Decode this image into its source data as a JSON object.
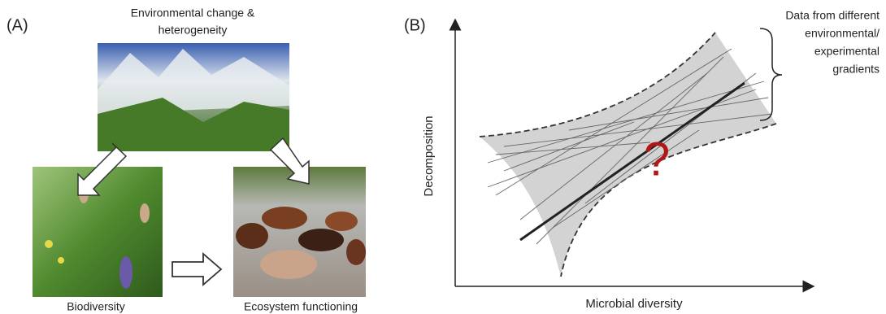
{
  "panel_a": {
    "label": "(A)",
    "top_label": [
      "Environmental change &",
      "heterogeneity"
    ],
    "left_label": "Biodiversity",
    "right_label": "Ecosystem functioning"
  },
  "panel_b": {
    "label": "(B)",
    "annotation": [
      "Data from different",
      "environmental/",
      "experimental",
      "gradients"
    ],
    "y_label": "Decomposition",
    "x_label": "Microbial diversity",
    "question_mark": "?"
  }
}
